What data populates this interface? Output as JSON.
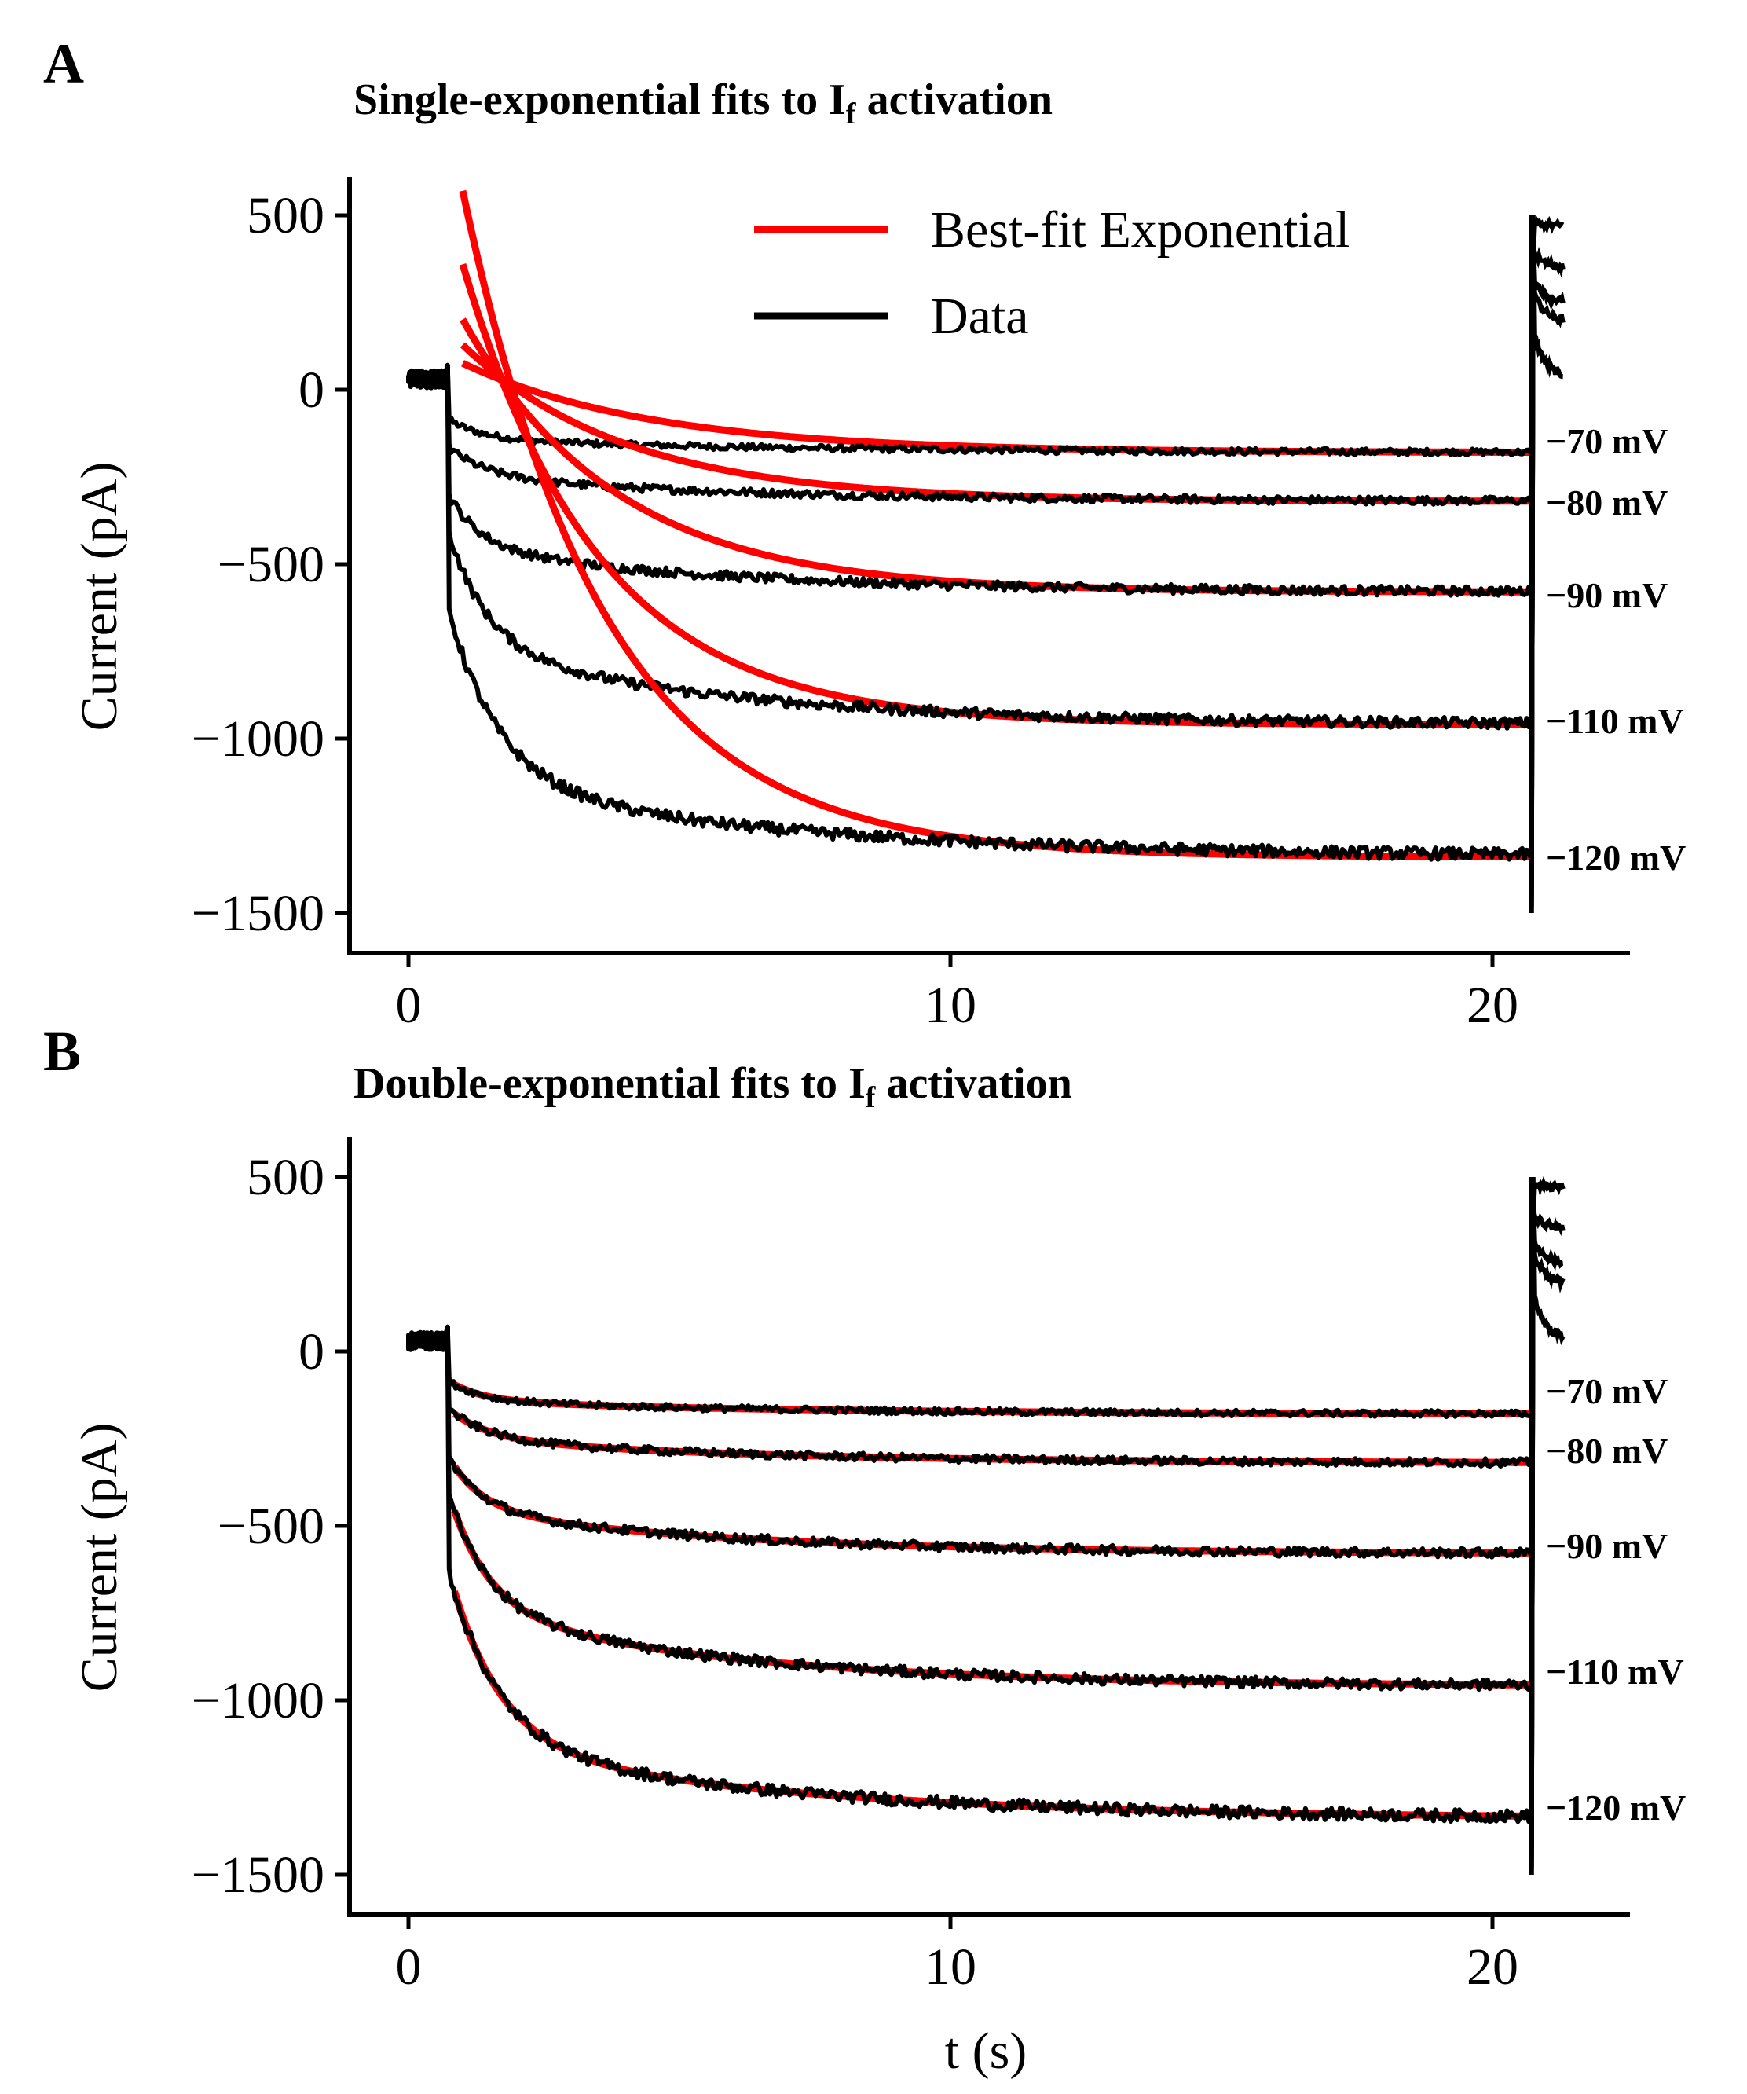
{
  "chart_data": [
    {
      "type": "line",
      "panel_label": "A",
      "title": "Single-exponential fits to I",
      "title_subscript": "f",
      "title_suffix": " activation",
      "xlabel": "",
      "ylabel": "Current (pA)",
      "xlim": [
        -1,
        22.5
      ],
      "ylim": [
        -1600,
        600
      ],
      "xticks": [
        0,
        10,
        20
      ],
      "xtick_labels": [
        "0",
        "10",
        "20"
      ],
      "yticks": [
        500,
        0,
        -500,
        -1000,
        -1500
      ],
      "ytick_labels": [
        "500",
        "0",
        "−500",
        "−1000",
        "−1500"
      ],
      "legend": [
        "Best-fit Exponential",
        "Data"
      ],
      "legend_location": "top-right",
      "fit_model": "single",
      "series": [
        {
          "name": "Data",
          "voltage_label": "−70 mV",
          "steady_state": -180,
          "offset_end": 35
        },
        {
          "name": "Data",
          "voltage_label": "−80 mV",
          "steady_state": -320,
          "offset_end": 195
        },
        {
          "name": "Data",
          "voltage_label": "−90 mV",
          "steady_state": -580,
          "offset_end": 250
        },
        {
          "name": "Data",
          "voltage_label": "−110 mV",
          "steady_state": -960,
          "offset_end": 350
        },
        {
          "name": "Data",
          "voltage_label": "−120 mV",
          "steady_state": -1340,
          "offset_end": 470
        }
      ]
    },
    {
      "type": "line",
      "panel_label": "B",
      "title": "Double-exponential fits to I",
      "title_subscript": "f",
      "title_suffix": " activation",
      "xlabel": "t (s)",
      "ylabel": "Current (pA)",
      "xlim": [
        -1,
        22.5
      ],
      "ylim": [
        -1600,
        600
      ],
      "xticks": [
        0,
        10,
        20
      ],
      "xtick_labels": [
        "0",
        "10",
        "20"
      ],
      "yticks": [
        500,
        0,
        -500,
        -1000,
        -1500
      ],
      "ytick_labels": [
        "500",
        "0",
        "−500",
        "−1000",
        "−1500"
      ],
      "fit_model": "double",
      "series": [
        {
          "name": "Data",
          "voltage_label": "−70 mV",
          "steady_state": -180,
          "offset_end": 35
        },
        {
          "name": "Data",
          "voltage_label": "−80 mV",
          "steady_state": -320,
          "offset_end": 195
        },
        {
          "name": "Data",
          "voltage_label": "−90 mV",
          "steady_state": -580,
          "offset_end": 250
        },
        {
          "name": "Data",
          "voltage_label": "−110 mV",
          "steady_state": -960,
          "offset_end": 350
        },
        {
          "name": "Data",
          "voltage_label": "−120 mV",
          "steady_state": -1340,
          "offset_end": 470
        }
      ]
    }
  ],
  "colors": {
    "fit": "#ff0000",
    "data": "#000000"
  }
}
